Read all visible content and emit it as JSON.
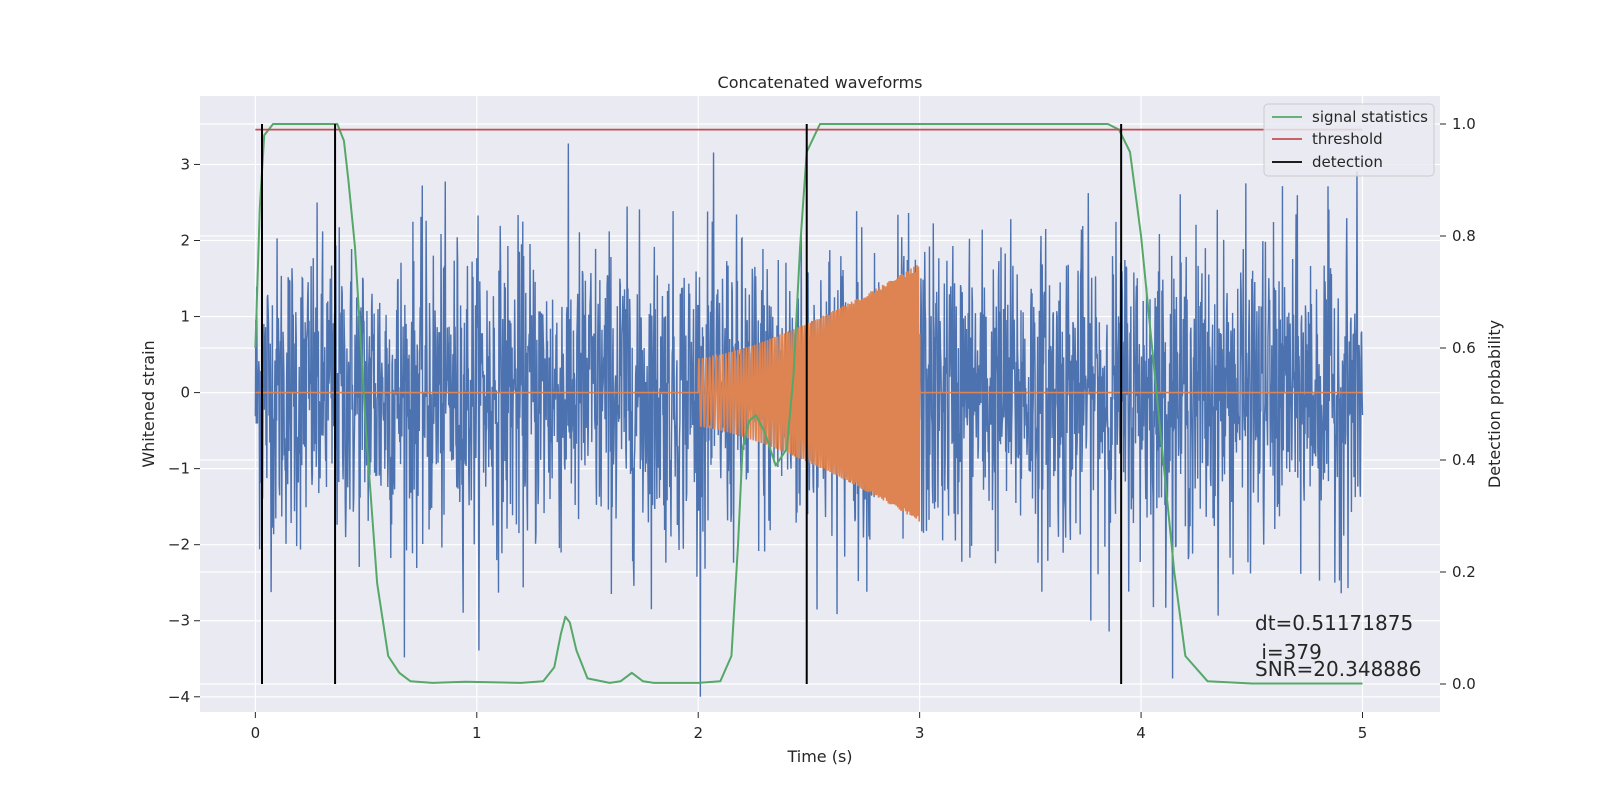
{
  "chart_data": {
    "type": "line",
    "title": "Concatenated waveforms",
    "xlabel": "Time (s)",
    "ylabel_left": "Whitened strain",
    "ylabel_right": "Detection probability",
    "xlim": [
      -0.25,
      5.35
    ],
    "ylim_left": [
      -4.2,
      3.9
    ],
    "ylim_right": [
      -0.05,
      1.05
    ],
    "x_ticks": [
      0,
      1,
      2,
      3,
      4,
      5
    ],
    "y_ticks_left": [
      -4,
      -3,
      -2,
      -1,
      0,
      1,
      2,
      3
    ],
    "y_ticks_right": [
      0.0,
      0.2,
      0.4,
      0.6,
      0.8,
      1.0
    ],
    "grid": true,
    "legend_position": "top-right",
    "legend": [
      "signal statistics",
      "threshold",
      "detection"
    ],
    "series": [
      {
        "kind": "noise",
        "axis": "left",
        "color": "#4c72b0",
        "x_range": [
          0,
          5
        ],
        "description_values": {
          "typical_amplitude": 1.0,
          "peak_min": -4.0,
          "peak_max": 3.6
        }
      },
      {
        "kind": "chirp",
        "axis": "left",
        "color": "#dd8452",
        "x_range": [
          0,
          5
        ],
        "active_range": [
          2.0,
          3.0
        ],
        "amplitude_start": 0.45,
        "amplitude_end": 1.7
      },
      {
        "name": "signal statistics",
        "axis": "right",
        "color": "#55a868",
        "x": [
          0.0,
          0.02,
          0.04,
          0.08,
          0.15,
          0.3,
          0.37,
          0.4,
          0.42,
          0.45,
          0.5,
          0.55,
          0.6,
          0.65,
          0.7,
          0.8,
          0.95,
          1.2,
          1.3,
          1.35,
          1.38,
          1.4,
          1.42,
          1.45,
          1.5,
          1.6,
          1.65,
          1.7,
          1.75,
          1.8,
          2.0,
          2.1,
          2.15,
          2.18,
          2.2,
          2.23,
          2.26,
          2.3,
          2.35,
          2.4,
          2.43,
          2.46,
          2.49,
          2.55,
          2.8,
          3.5,
          3.85,
          3.9,
          3.95,
          4.0,
          4.05,
          4.1,
          4.15,
          4.2,
          4.3,
          4.5,
          5.0
        ],
        "y": [
          0.6,
          0.85,
          0.98,
          1.0,
          1.0,
          1.0,
          1.0,
          0.97,
          0.9,
          0.78,
          0.45,
          0.18,
          0.05,
          0.02,
          0.005,
          0.002,
          0.004,
          0.002,
          0.005,
          0.03,
          0.09,
          0.12,
          0.11,
          0.06,
          0.01,
          0.002,
          0.005,
          0.02,
          0.005,
          0.002,
          0.002,
          0.005,
          0.05,
          0.25,
          0.42,
          0.47,
          0.48,
          0.45,
          0.39,
          0.42,
          0.55,
          0.78,
          0.95,
          1.0,
          1.0,
          1.0,
          1.0,
          0.99,
          0.95,
          0.8,
          0.6,
          0.4,
          0.2,
          0.05,
          0.005,
          0.001,
          0.001
        ]
      },
      {
        "name": "threshold",
        "axis": "right",
        "color": "#c44e52",
        "x": [
          0,
          5
        ],
        "y": [
          0.99,
          0.99
        ]
      },
      {
        "name": "detection",
        "axis": "right",
        "color": "#000000",
        "x": [
          0.03,
          0.36,
          2.49,
          3.91
        ],
        "y_range": [
          0,
          1
        ]
      }
    ],
    "annotations": [
      "dt=0.51171875",
      " i=379",
      "SNR=20.348886"
    ]
  }
}
